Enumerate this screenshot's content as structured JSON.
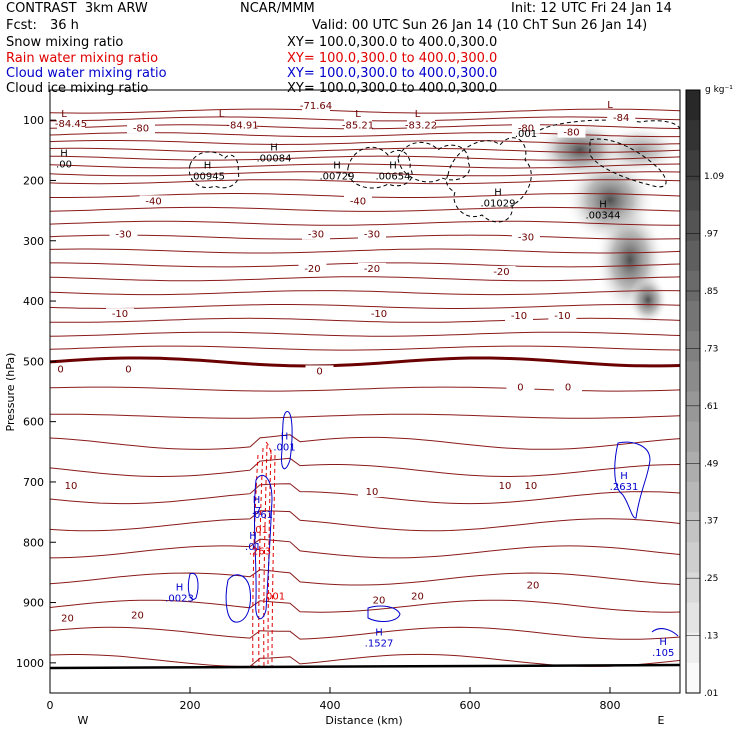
{
  "header": {
    "model": "CONTRAST  3km ARW",
    "org": "NCAR/MMM",
    "init": "Init: 12 UTC Fri 24 Jan 14",
    "fcst_label": "Fcst:",
    "fcst_value": "36 h",
    "valid": "Valid: 00 UTC Sun 26 Jan 14 (10 ChT Sun 26 Jan 14)"
  },
  "fields": [
    {
      "name": "Snow mixing ratio",
      "xy": "XY= 100.0,300.0 to 400.0,300.0",
      "color": "#000000"
    },
    {
      "name": "Rain water mixing ratio",
      "xy": "XY= 100.0,300.0 to 400.0,300.0",
      "color": "#e00000"
    },
    {
      "name": "Cloud water mixing ratio",
      "xy": "XY= 100.0,300.0 to 400.0,300.0",
      "color": "#0000cc"
    },
    {
      "name": "Cloud ice mixing ratio",
      "xy": "XY= 100.0,300.0 to 400.0,300.0",
      "color": "#000000"
    }
  ],
  "chart_data": {
    "type": "cross-section",
    "xlabel": "Distance (km)",
    "ylabel": "Pressure (hPa)",
    "xlim": [
      0,
      900
    ],
    "ylim": [
      1050,
      50
    ],
    "x_ticks": [
      "0",
      "200",
      "400",
      "600",
      "800"
    ],
    "y_ticks": [
      "100",
      "200",
      "300",
      "400",
      "500",
      "600",
      "700",
      "800",
      "900",
      "1000"
    ],
    "x_end_labels": {
      "left": "W",
      "right": "E"
    },
    "colorbar": {
      "unit": "g kg⁻¹",
      "levels": [
        "1.09",
        ".97",
        ".85",
        ".73",
        ".61",
        ".49",
        ".37",
        ".25",
        ".13",
        ".01"
      ]
    },
    "isotherm_labels": [
      {
        "text": "-71.64",
        "x": 380,
        "p": 80
      },
      {
        "text": "-84.45",
        "x": 30,
        "p": 110
      },
      {
        "text": "-84.91",
        "x": 275,
        "p": 112
      },
      {
        "text": "-85.21",
        "x": 440,
        "p": 112
      },
      {
        "text": "-83.22",
        "x": 530,
        "p": 112
      },
      {
        "text": "-80",
        "x": 130,
        "p": 117
      },
      {
        "text": "-80",
        "x": 680,
        "p": 117
      },
      {
        "text": "-80",
        "x": 745,
        "p": 124
      },
      {
        "text": "-84",
        "x": 816,
        "p": 100
      },
      {
        "text": "-40",
        "x": 148,
        "p": 238
      },
      {
        "text": "-40",
        "x": 440,
        "p": 238
      },
      {
        "text": "-30",
        "x": 105,
        "p": 293
      },
      {
        "text": "-30",
        "x": 380,
        "p": 293
      },
      {
        "text": "-30",
        "x": 460,
        "p": 293
      },
      {
        "text": "-30",
        "x": 680,
        "p": 298
      },
      {
        "text": "-20",
        "x": 375,
        "p": 350
      },
      {
        "text": "-20",
        "x": 460,
        "p": 350
      },
      {
        "text": "-20",
        "x": 645,
        "p": 355
      },
      {
        "text": "-10",
        "x": 100,
        "p": 425
      },
      {
        "text": "-10",
        "x": 470,
        "p": 425
      },
      {
        "text": "-10",
        "x": 670,
        "p": 428
      },
      {
        "text": "-10",
        "x": 732,
        "p": 428
      },
      {
        "text": "0",
        "x": 15,
        "p": 517
      },
      {
        "text": "0",
        "x": 112,
        "p": 517
      },
      {
        "text": "0",
        "x": 385,
        "p": 520
      },
      {
        "text": "0",
        "x": 672,
        "p": 547
      },
      {
        "text": "0",
        "x": 740,
        "p": 547
      },
      {
        "text": "10",
        "x": 30,
        "p": 710
      },
      {
        "text": "10",
        "x": 460,
        "p": 720
      },
      {
        "text": "10",
        "x": 650,
        "p": 710
      },
      {
        "text": "10",
        "x": 687,
        "p": 710
      },
      {
        "text": "20",
        "x": 25,
        "p": 930
      },
      {
        "text": "20",
        "x": 125,
        "p": 925
      },
      {
        "text": "20",
        "x": 470,
        "p": 900
      },
      {
        "text": "20",
        "x": 525,
        "p": 893
      },
      {
        "text": "20",
        "x": 690,
        "p": 875
      }
    ],
    "extrema": [
      {
        "mark": "L",
        "x": 20,
        "p": 95,
        "value": "",
        "color": "#6b0000"
      },
      {
        "mark": "L",
        "x": 245,
        "p": 95,
        "value": "",
        "color": "#6b0000"
      },
      {
        "mark": "L",
        "x": 440,
        "p": 95,
        "value": "",
        "color": "#6b0000"
      },
      {
        "mark": "L",
        "x": 525,
        "p": 95,
        "value": "",
        "color": "#6b0000"
      },
      {
        "mark": "L",
        "x": 800,
        "p": 80,
        "value": "",
        "color": "#6b0000"
      },
      {
        "mark": "H",
        "x": 20,
        "p": 160,
        "value": ".00",
        "color": "#000000"
      },
      {
        "mark": "H",
        "x": 225,
        "p": 180,
        "value": ".00945",
        "color": "#000000"
      },
      {
        "mark": "H",
        "x": 320,
        "p": 150,
        "value": ".00084",
        "color": "#000000"
      },
      {
        "mark": "H",
        "x": 410,
        "p": 180,
        "value": ".00729",
        "color": "#000000"
      },
      {
        "mark": "H",
        "x": 490,
        "p": 180,
        "value": ".00654",
        "color": "#000000"
      },
      {
        "mark": "H",
        "x": 640,
        "p": 225,
        "value": ".01029",
        "color": "#000000"
      },
      {
        "mark": "H",
        "x": 790,
        "p": 245,
        "value": ".00344",
        "color": "#000000"
      },
      {
        "mark": "",
        "x": 680,
        "p": 128,
        "value": ".001",
        "color": "#000000"
      },
      {
        "mark": "H",
        "x": 335,
        "p": 630,
        "value": ".001",
        "color": "#0000cc"
      },
      {
        "mark": "H",
        "x": 295,
        "p": 735,
        "value": ".7",
        "color": "#0000cc"
      },
      {
        "mark": "",
        "x": 305,
        "p": 760,
        "value": "061",
        "color": "#0000cc"
      },
      {
        "mark": "",
        "x": 300,
        "p": 785,
        "value": ".01",
        "color": "#e00000"
      },
      {
        "mark": "H",
        "x": 290,
        "p": 795,
        "value": ".01",
        "color": "#0000cc"
      },
      {
        "mark": "",
        "x": 300,
        "p": 820,
        "value": ".263",
        "color": "#e00000"
      },
      {
        "mark": "H",
        "x": 185,
        "p": 880,
        "value": ".0023",
        "color": "#0000cc"
      },
      {
        "mark": "",
        "x": 320,
        "p": 895,
        "value": ".001",
        "color": "#e00000"
      },
      {
        "mark": "H",
        "x": 470,
        "p": 955,
        "value": ".1527",
        "color": "#0000cc"
      },
      {
        "mark": "H",
        "x": 820,
        "p": 695,
        "value": ".2631",
        "color": "#0000cc"
      },
      {
        "mark": "H",
        "x": 876,
        "p": 970,
        "value": ".105",
        "color": "#0000cc"
      }
    ],
    "notes": "Theta contours in dark red (thick line at 0 C level); snow mixing ratio shaded in gray; cloud ice dashed black; rain water dashed red; cloud water solid blue."
  }
}
